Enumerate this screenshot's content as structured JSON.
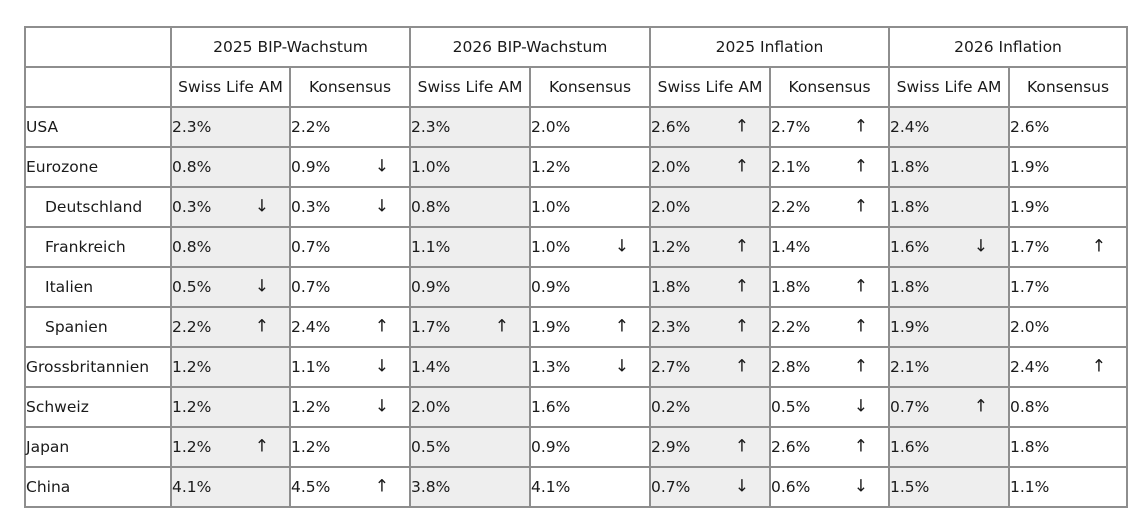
{
  "groups": [
    "2025 BIP-Wachstum",
    "2026 BIP-Wachstum",
    "2025 Inflation",
    "2026 Inflation"
  ],
  "subheaders": [
    "Swiss Life AM",
    "Konsensus"
  ],
  "arrow_glyphs": {
    "up": "↑",
    "down": "↓"
  },
  "rows": [
    {
      "country": "USA",
      "cells": [
        {
          "v": "2.3%",
          "a": ""
        },
        {
          "v": "2.2%",
          "a": ""
        },
        {
          "v": "2.3%",
          "a": ""
        },
        {
          "v": "2.0%",
          "a": ""
        },
        {
          "v": "2.6%",
          "a": "↑"
        },
        {
          "v": "2.7%",
          "a": "↑"
        },
        {
          "v": "2.4%",
          "a": ""
        },
        {
          "v": "2.6%",
          "a": ""
        }
      ]
    },
    {
      "country": "Eurozone",
      "cells": [
        {
          "v": "0.8%",
          "a": ""
        },
        {
          "v": "0.9%",
          "a": "↓"
        },
        {
          "v": "1.0%",
          "a": ""
        },
        {
          "v": "1.2%",
          "a": ""
        },
        {
          "v": "2.0%",
          "a": "↑"
        },
        {
          "v": "2.1%",
          "a": "↑"
        },
        {
          "v": "1.8%",
          "a": ""
        },
        {
          "v": "1.9%",
          "a": ""
        }
      ]
    },
    {
      "country": "Deutschland",
      "cells": [
        {
          "v": "0.3%",
          "a": "↓"
        },
        {
          "v": "0.3%",
          "a": "↓"
        },
        {
          "v": "0.8%",
          "a": ""
        },
        {
          "v": "1.0%",
          "a": ""
        },
        {
          "v": "2.0%",
          "a": ""
        },
        {
          "v": "2.2%",
          "a": "↑"
        },
        {
          "v": "1.8%",
          "a": ""
        },
        {
          "v": "1.9%",
          "a": ""
        }
      ]
    },
    {
      "country": "Frankreich",
      "cells": [
        {
          "v": "0.8%",
          "a": ""
        },
        {
          "v": "0.7%",
          "a": ""
        },
        {
          "v": "1.1%",
          "a": ""
        },
        {
          "v": "1.0%",
          "a": "↓"
        },
        {
          "v": "1.2%",
          "a": "↑"
        },
        {
          "v": "1.4%",
          "a": ""
        },
        {
          "v": "1.6%",
          "a": "↓"
        },
        {
          "v": "1.7%",
          "a": "↑"
        }
      ]
    },
    {
      "country": "Italien",
      "cells": [
        {
          "v": "0.5%",
          "a": "↓"
        },
        {
          "v": "0.7%",
          "a": ""
        },
        {
          "v": "0.9%",
          "a": ""
        },
        {
          "v": "0.9%",
          "a": ""
        },
        {
          "v": "1.8%",
          "a": "↑"
        },
        {
          "v": "1.8%",
          "a": "↑"
        },
        {
          "v": "1.8%",
          "a": ""
        },
        {
          "v": "1.7%",
          "a": ""
        }
      ]
    },
    {
      "country": "Spanien",
      "cells": [
        {
          "v": "2.2%",
          "a": "↑"
        },
        {
          "v": "2.4%",
          "a": "↑"
        },
        {
          "v": "1.7%",
          "a": "↑"
        },
        {
          "v": "1.9%",
          "a": "↑"
        },
        {
          "v": "2.3%",
          "a": "↑"
        },
        {
          "v": "2.2%",
          "a": "↑"
        },
        {
          "v": "1.9%",
          "a": ""
        },
        {
          "v": "2.0%",
          "a": ""
        }
      ]
    },
    {
      "country": "Grossbritannien",
      "cells": [
        {
          "v": "1.2%",
          "a": ""
        },
        {
          "v": "1.1%",
          "a": "↓"
        },
        {
          "v": "1.4%",
          "a": ""
        },
        {
          "v": "1.3%",
          "a": "↓"
        },
        {
          "v": "2.7%",
          "a": "↑"
        },
        {
          "v": "2.8%",
          "a": "↑"
        },
        {
          "v": "2.1%",
          "a": ""
        },
        {
          "v": "2.4%",
          "a": "↑"
        }
      ]
    },
    {
      "country": "Schweiz",
      "cells": [
        {
          "v": "1.2%",
          "a": ""
        },
        {
          "v": "1.2%",
          "a": "↓"
        },
        {
          "v": "2.0%",
          "a": ""
        },
        {
          "v": "1.6%",
          "a": ""
        },
        {
          "v": "0.2%",
          "a": ""
        },
        {
          "v": "0.5%",
          "a": "↓"
        },
        {
          "v": "0.7%",
          "a": "↑"
        },
        {
          "v": "0.8%",
          "a": ""
        }
      ]
    },
    {
      "country": "Japan",
      "cells": [
        {
          "v": "1.2%",
          "a": "↑"
        },
        {
          "v": "1.2%",
          "a": ""
        },
        {
          "v": "0.5%",
          "a": ""
        },
        {
          "v": "0.9%",
          "a": ""
        },
        {
          "v": "2.9%",
          "a": "↑"
        },
        {
          "v": "2.6%",
          "a": "↑"
        },
        {
          "v": "1.6%",
          "a": ""
        },
        {
          "v": "1.8%",
          "a": ""
        }
      ]
    },
    {
      "country": "China",
      "cells": [
        {
          "v": "4.1%",
          "a": ""
        },
        {
          "v": "4.5%",
          "a": "↑"
        },
        {
          "v": "3.8%",
          "a": ""
        },
        {
          "v": "4.1%",
          "a": ""
        },
        {
          "v": "0.7%",
          "a": "↓"
        },
        {
          "v": "0.6%",
          "a": "↓"
        },
        {
          "v": "1.5%",
          "a": ""
        },
        {
          "v": "1.1%",
          "a": ""
        }
      ]
    }
  ]
}
